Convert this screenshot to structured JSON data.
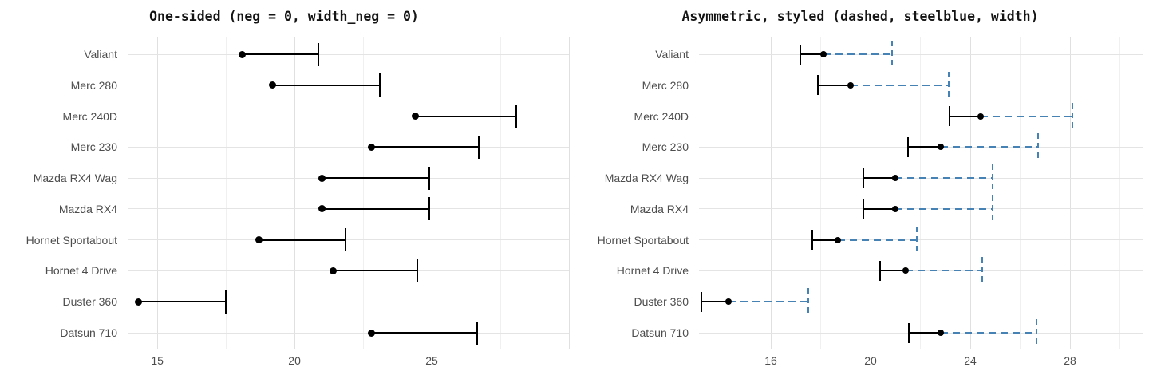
{
  "figure": {
    "background": "#FFFFFF",
    "axis_text_color": "#4D4D4D",
    "grid_major_color": "#E0E0E0",
    "grid_minor_color": "#F0F0F0"
  },
  "chart_data": [
    {
      "type": "errorbar",
      "orientation": "horizontal",
      "title": "One-sided (neg = 0, width_neg = 0)",
      "categories": [
        "Valiant",
        "Merc 280",
        "Merc 240D",
        "Merc 230",
        "Mazda RX4 Wag",
        "Mazda RX4",
        "Hornet Sportabout",
        "Hornet 4 Drive",
        "Duster 360",
        "Datsun 710"
      ],
      "points": [
        18.1,
        19.2,
        24.4,
        22.8,
        21.0,
        21.0,
        18.7,
        21.4,
        14.3,
        22.8
      ],
      "xmin": [
        18.1,
        19.2,
        24.4,
        22.8,
        21.0,
        21.0,
        18.7,
        21.4,
        14.3,
        22.8
      ],
      "xmax": [
        20.86,
        23.12,
        28.09,
        26.72,
        24.9,
        24.9,
        21.85,
        24.48,
        17.51,
        26.65
      ],
      "x_tick_labels": [
        "15",
        "20",
        "25"
      ],
      "x_ticks": [
        15,
        20,
        25
      ],
      "x_grid_major": [
        15,
        20,
        25,
        30
      ],
      "x_grid_minor": [
        17.5,
        22.5,
        27.5
      ],
      "xlim": [
        13.92,
        30.0
      ],
      "grid": true,
      "legend": false,
      "style": {
        "line_color": "#000000",
        "linetype": "solid",
        "neg_side_drawn": false,
        "cap_height": 29,
        "point_size": 9
      }
    },
    {
      "type": "errorbar",
      "orientation": "horizontal",
      "title": "Asymmetric, styled (dashed, steelblue, width)",
      "categories": [
        "Valiant",
        "Merc 280",
        "Merc 240D",
        "Merc 230",
        "Mazda RX4 Wag",
        "Mazda RX4",
        "Hornet Sportabout",
        "Hornet 4 Drive",
        "Duster 360",
        "Datsun 710"
      ],
      "points": [
        18.1,
        19.2,
        24.4,
        22.8,
        21.0,
        21.0,
        18.7,
        21.4,
        14.3,
        22.8
      ],
      "xmin": [
        17.18,
        17.89,
        23.17,
        21.49,
        19.7,
        19.7,
        17.65,
        20.37,
        13.23,
        21.52
      ],
      "xmax": [
        20.86,
        23.12,
        28.09,
        26.72,
        24.9,
        24.9,
        21.85,
        24.48,
        17.51,
        26.65
      ],
      "x_tick_labels": [
        "16",
        "20",
        "24",
        "28"
      ],
      "x_ticks": [
        16,
        20,
        24,
        28
      ],
      "x_grid_major": [
        16,
        20,
        24,
        28
      ],
      "x_grid_minor": [
        14,
        18,
        22,
        26,
        30
      ],
      "xlim": [
        13.12,
        30.91
      ],
      "grid": true,
      "legend": false,
      "style": {
        "neg_line_color": "#000000",
        "neg_linetype": "solid",
        "neg_cap_height": 25,
        "pos_line_color": "#4682B4",
        "pos_color_name": "steelblue",
        "pos_linetype": "dashed",
        "pos_cap_height": 34,
        "point_size": 8
      }
    }
  ]
}
